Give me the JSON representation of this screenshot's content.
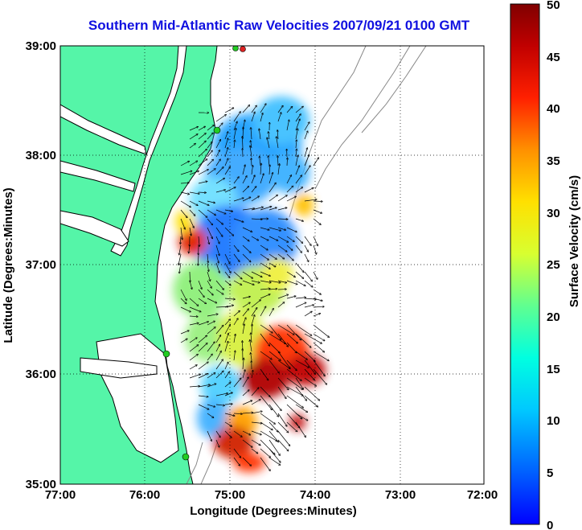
{
  "title": "Southern Mid-Atlantic Raw Velocities 2007/09/21 0100 GMT",
  "x_axis": {
    "label": "Longitude (Degrees:Minutes)",
    "ticks": [
      "77:00",
      "76:00",
      "75:00",
      "74:00",
      "73:00",
      "72:00"
    ]
  },
  "y_axis": {
    "label": "Latitude (Degrees:Minutes)",
    "ticks": [
      "39:00",
      "38:00",
      "37:00",
      "36:00",
      "35:00"
    ]
  },
  "colorbar": {
    "label": "Surface Velocity (cm/s)",
    "ticks": [
      "50",
      "45",
      "40",
      "35",
      "30",
      "25",
      "20",
      "15",
      "10",
      "5",
      "0"
    ],
    "range": [
      0,
      50
    ]
  },
  "colors": {
    "land": "#55f5a8",
    "coastline": "#000000",
    "title": "#1010e0",
    "bathymetry": "#888888",
    "grid": "#000000",
    "station": "#22cc22",
    "station_alt": "#dd2222"
  },
  "map": {
    "lon_range": [
      -77,
      -72
    ],
    "lat_range": [
      35,
      39
    ],
    "grid": "dotted"
  }
}
